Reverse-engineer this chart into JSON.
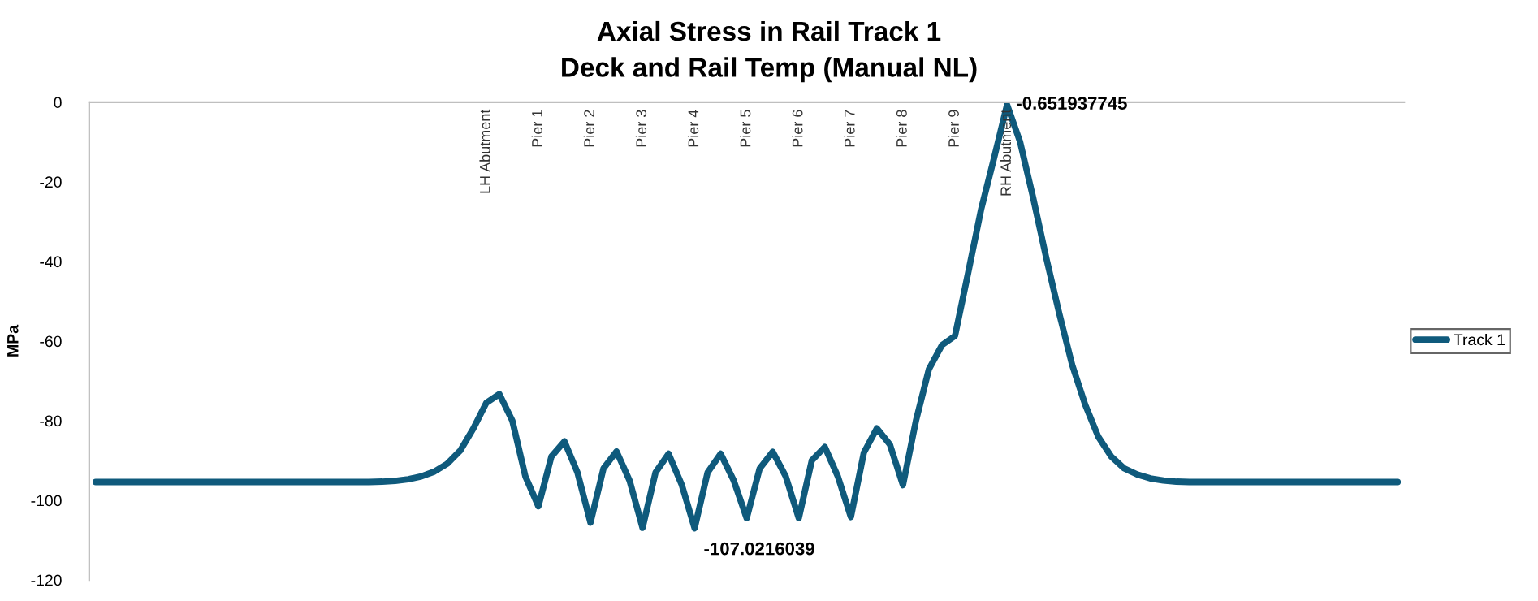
{
  "chart_data": {
    "type": "line",
    "title": "Axial Stress in Rail Track 1",
    "subtitle": "Deck and Rail Temp (Manual NL)",
    "ylabel": "MPa",
    "categories": [
      null,
      null,
      null,
      null,
      null,
      null,
      null,
      null,
      null,
      null,
      null,
      null,
      null,
      null,
      null,
      null,
      null,
      null,
      null,
      null,
      null,
      null,
      null,
      null,
      null,
      null,
      null,
      null,
      null,
      null,
      "LH Abutment",
      null,
      null,
      null,
      "Pier 1",
      null,
      null,
      null,
      "Pier 2",
      null,
      null,
      null,
      "Pier 3",
      null,
      null,
      null,
      "Pier 4",
      null,
      null,
      null,
      "Pier 5",
      null,
      null,
      null,
      "Pier 6",
      null,
      null,
      null,
      "Pier 7",
      null,
      null,
      null,
      "Pier 8",
      null,
      null,
      null,
      "Pier 9",
      null,
      null,
      null,
      "RH Abutment",
      null,
      null,
      null,
      null,
      null,
      null,
      null,
      null,
      null,
      null,
      null,
      null,
      null,
      null,
      null,
      null,
      null,
      null,
      null,
      null,
      null,
      null,
      null,
      null,
      null,
      null,
      null,
      null,
      null,
      null
    ],
    "series": [
      {
        "name": "Track 1",
        "color": "#0f5a7c",
        "values": [
          -95.4,
          -95.4,
          -95.4,
          -95.4,
          -95.4,
          -95.4,
          -95.4,
          -95.4,
          -95.4,
          -95.4,
          -95.4,
          -95.4,
          -95.4,
          -95.4,
          -95.4,
          -95.4,
          -95.4,
          -95.4,
          -95.4,
          -95.4,
          -95.4,
          -95.4,
          -95.3,
          -95.1,
          -94.7,
          -94.0,
          -92.8,
          -90.8,
          -87.5,
          -82.0,
          -75.5,
          -73.3,
          -80,
          -94,
          -101.5,
          -89,
          -85.2,
          -93,
          -105.6,
          -92,
          -87.7,
          -95,
          -106.9,
          -93,
          -88.3,
          -96,
          -107.0216039,
          -93,
          -88.3,
          -95,
          -104.5,
          -92,
          -87.8,
          -94,
          -104.5,
          -90,
          -86.6,
          -94,
          -104.2,
          -88,
          -81.9,
          -86,
          -96.2,
          -80,
          -67,
          -61,
          -58.7,
          -43,
          -27,
          -14,
          -0.651937745,
          -10,
          -24,
          -39,
          -53,
          -66,
          -76,
          -84,
          -89,
          -92,
          -93.5,
          -94.5,
          -95.0,
          -95.3,
          -95.4,
          -95.4,
          -95.4,
          -95.4,
          -95.4,
          -95.4,
          -95.4,
          -95.4,
          -95.4,
          -95.4,
          -95.4,
          -95.4,
          -95.4,
          -95.4,
          -95.4,
          -95.4,
          -95.4
        ],
        "value_labels": [
          null,
          null,
          null,
          null,
          null,
          null,
          null,
          null,
          null,
          null,
          null,
          null,
          null,
          null,
          null,
          null,
          null,
          null,
          null,
          null,
          null,
          null,
          null,
          null,
          null,
          null,
          null,
          null,
          null,
          null,
          null,
          null,
          null,
          null,
          null,
          null,
          null,
          null,
          null,
          null,
          null,
          null,
          null,
          null,
          null,
          null,
          "-107.0216039",
          null,
          null,
          null,
          null,
          null,
          null,
          null,
          null,
          null,
          null,
          null,
          null,
          null,
          null,
          null,
          null,
          null,
          null,
          null,
          null,
          null,
          null,
          null,
          "-0.651937745",
          null,
          null,
          null,
          null,
          null,
          null,
          null,
          null,
          null,
          null,
          null,
          null,
          null,
          null,
          null,
          null,
          null,
          null,
          null,
          null,
          null,
          null,
          null,
          null,
          null,
          null,
          null,
          null,
          null,
          null
        ]
      }
    ],
    "ylim": [
      -120,
      0
    ],
    "yticks": [
      0,
      -20,
      -40,
      -60,
      -80,
      -100,
      -120
    ],
    "grid": false,
    "legend": "right",
    "marker": "none",
    "line_style": "solid"
  }
}
